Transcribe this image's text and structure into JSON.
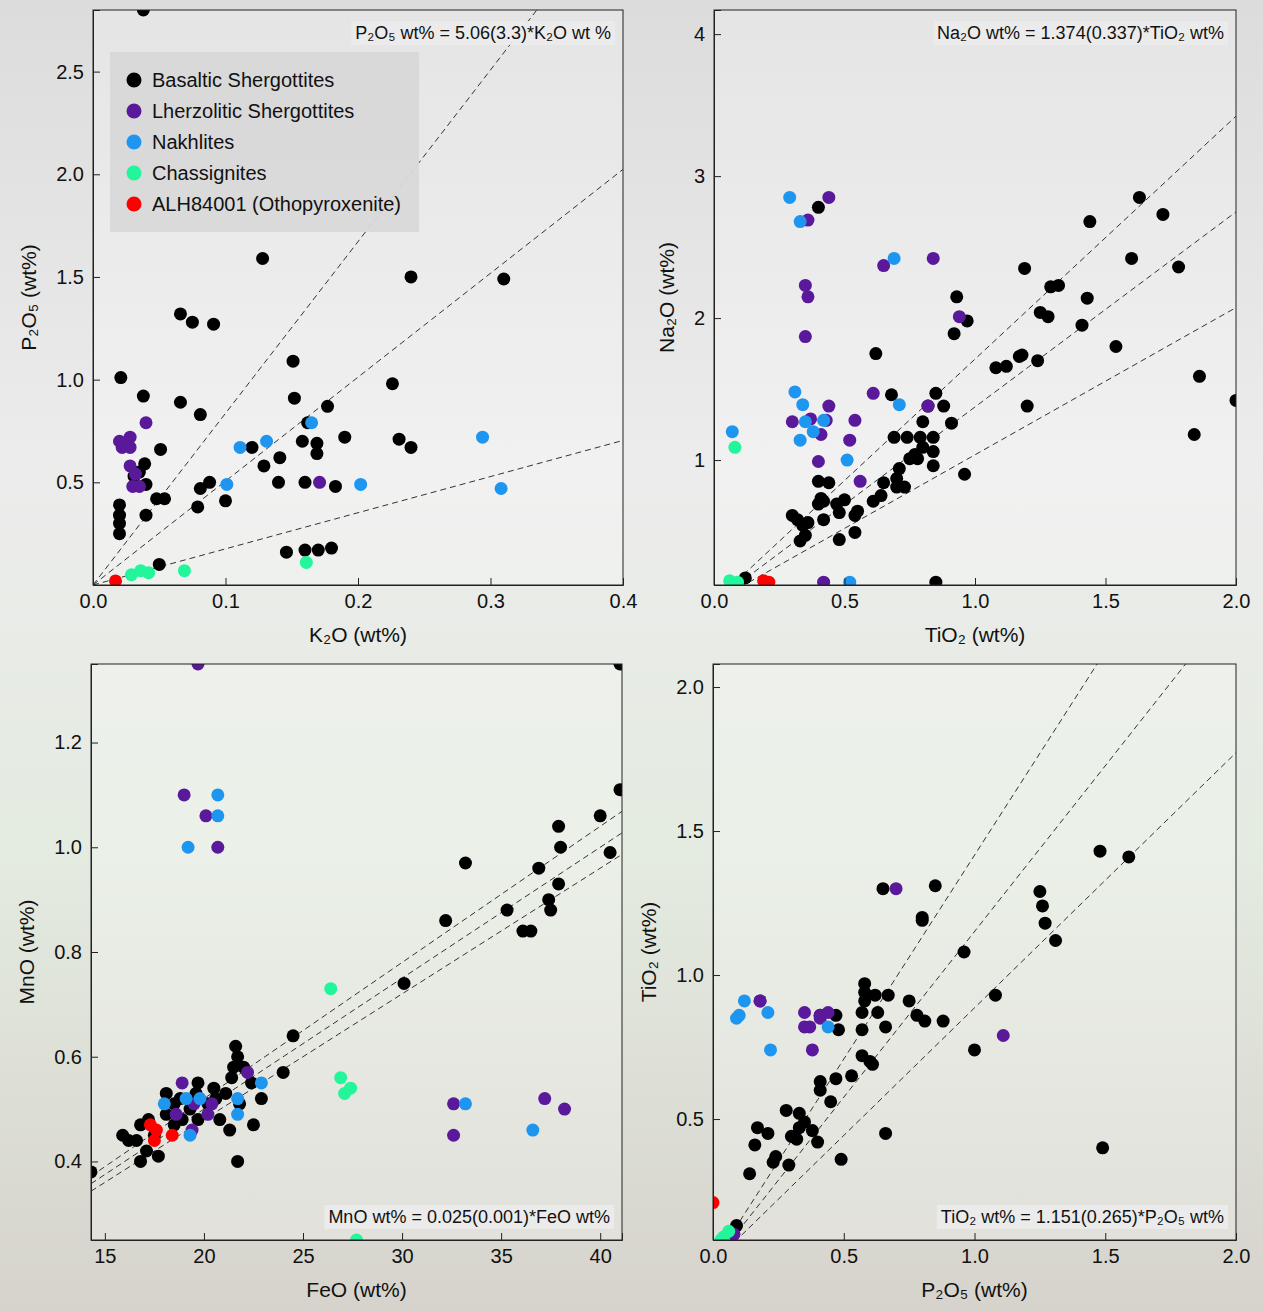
{
  "chart_data": [
    {
      "type": "scatter",
      "x_label": "K₂O (wt%)",
      "y_label": "P₂O₅ (wt%)",
      "annotation": "P₂O₅ wt% = 5.06(3.3)*K₂O wt %",
      "fit": {
        "slope": 5.06,
        "error": 3.3
      },
      "xlim": [
        0,
        0.4
      ],
      "ylim": [
        0,
        2.8
      ],
      "xticks": [
        {
          "value": 0,
          "label": "0.0"
        },
        0.1,
        0.2,
        0.3,
        0.4
      ],
      "yticks": [
        0.5,
        {
          "value": 1,
          "label": "1.0"
        },
        1.5,
        {
          "value": 2,
          "label": "2.0"
        },
        2.5
      ],
      "legend": "upper left",
      "series": [
        {
          "name": "Basaltic Shergottites",
          "color": "#000000",
          "x": [
            0.038,
            0.128,
            0.24,
            0.31,
            0.066,
            0.075,
            0.091,
            0.021,
            0.226,
            0.151,
            0.152,
            0.038,
            0.066,
            0.081,
            0.177,
            0.162,
            0.19,
            0.231,
            0.24,
            0.158,
            0.169,
            0.169,
            0.12,
            0.141,
            0.129,
            0.088,
            0.1,
            0.081,
            0.079,
            0.14,
            0.16,
            0.183,
            0.051,
            0.039,
            0.035,
            0.031,
            0.04,
            0.04,
            0.048,
            0.054,
            0.02,
            0.02,
            0.02,
            0.02,
            0.05,
            0.146,
            0.16,
            0.17,
            0.18
          ],
          "y": [
            2.8,
            1.59,
            1.5,
            1.49,
            1.32,
            1.28,
            1.27,
            1.01,
            0.98,
            1.09,
            0.91,
            0.92,
            0.89,
            0.83,
            0.87,
            0.79,
            0.72,
            0.71,
            0.67,
            0.7,
            0.69,
            0.64,
            0.67,
            0.62,
            0.58,
            0.5,
            0.41,
            0.47,
            0.38,
            0.5,
            0.5,
            0.48,
            0.66,
            0.59,
            0.55,
            0.53,
            0.49,
            0.34,
            0.42,
            0.42,
            0.39,
            0.34,
            0.3,
            0.25,
            0.1,
            0.16,
            0.17,
            0.17,
            0.18
          ]
        },
        {
          "name": "Lherzolitic Shergottites",
          "color": "#5a189a",
          "x": [
            0.02,
            0.028,
            0.022,
            0.028,
            0.04,
            0.028,
            0.032,
            0.03,
            0.035,
            0.171
          ],
          "y": [
            0.7,
            0.72,
            0.67,
            0.67,
            0.79,
            0.58,
            0.54,
            0.48,
            0.48,
            0.5
          ]
        },
        {
          "name": "Nakhlites",
          "color": "#1e96f0",
          "x": [
            0.131,
            0.111,
            0.101,
            0.165,
            0.202,
            0.294,
            0.308
          ],
          "y": [
            0.7,
            0.67,
            0.49,
            0.79,
            0.49,
            0.72,
            0.47
          ]
        },
        {
          "name": "Chassignites",
          "color": "#22f59a",
          "x": [
            0.029,
            0.036,
            0.042,
            0.069,
            0.161
          ],
          "y": [
            0.05,
            0.07,
            0.06,
            0.07,
            0.11
          ]
        },
        {
          "name": "ALH84001 (Othopyroxenite)",
          "color": "#ff0000",
          "x": [
            0.017
          ],
          "y": [
            0.02
          ]
        }
      ]
    },
    {
      "type": "scatter",
      "x_label": "TiO₂ (wt%)",
      "y_label": "Na₂O (wt%)",
      "annotation": "Na₂O wt% = 1.374(0.337)*TiO₂ wt%",
      "fit": {
        "slope": 1.374,
        "error": 0.337
      },
      "xlim": [
        0,
        2
      ],
      "ylim": [
        0.12,
        4.17
      ],
      "xticks": [
        {
          "value": 0,
          "label": "0.0"
        },
        0.5,
        {
          "value": 1,
          "label": "1.0"
        },
        1.5,
        {
          "value": 2,
          "label": "2.0"
        }
      ],
      "yticks": [
        1,
        2,
        3,
        4
      ],
      "series": [
        {
          "name": "Basaltic Shergottites",
          "color": "#000000",
          "x": [
            1.63,
            1.44,
            1.72,
            0.4,
            1.6,
            1.78,
            1.19,
            1.32,
            1.29,
            1.43,
            1.25,
            1.28,
            1.41,
            0.93,
            0.97,
            0.92,
            1.54,
            0.62,
            1.18,
            1.17,
            1.24,
            1.08,
            1.12,
            1.86,
            0.85,
            0.68,
            0.88,
            1.2,
            0.82,
            0.91,
            0.8,
            0.74,
            0.69,
            0.79,
            0.84,
            0.8,
            0.77,
            0.84,
            0.75,
            0.78,
            1.84,
            0.84,
            0.71,
            0.96,
            0.7,
            0.65,
            0.7,
            0.73,
            0.64,
            0.61,
            0.4,
            0.44,
            0.41,
            0.42,
            0.5,
            0.47,
            0.4,
            0.48,
            0.55,
            0.54,
            0.42,
            0.32,
            0.36,
            0.3,
            0.34,
            0.35,
            0.33,
            0.48,
            0.54,
            0.12,
            0.85,
            2.0
          ],
          "y": [
            2.85,
            2.68,
            2.73,
            2.78,
            2.42,
            2.36,
            2.35,
            2.23,
            2.22,
            2.14,
            2.04,
            2.01,
            1.95,
            2.15,
            1.98,
            1.89,
            1.8,
            1.75,
            1.74,
            1.73,
            1.7,
            1.65,
            1.66,
            1.59,
            1.47,
            1.46,
            1.38,
            1.38,
            1.38,
            1.26,
            1.27,
            1.16,
            1.16,
            1.16,
            1.16,
            1.09,
            1.04,
            1.06,
            1.01,
            1.01,
            1.18,
            0.96,
            0.94,
            0.9,
            0.87,
            0.84,
            0.81,
            0.81,
            0.75,
            0.71,
            0.85,
            0.84,
            0.73,
            0.71,
            0.72,
            0.69,
            0.69,
            0.63,
            0.64,
            0.61,
            0.58,
            0.58,
            0.56,
            0.61,
            0.54,
            0.47,
            0.43,
            0.44,
            0.49,
            0.17,
            0.14,
            1.42
          ]
        },
        {
          "name": "Lherzolitic Shergottites",
          "color": "#5a189a",
          "x": [
            0.44,
            0.36,
            0.35,
            0.36,
            0.35,
            0.84,
            0.65,
            0.94,
            0.61,
            0.82,
            0.3,
            0.37,
            0.44,
            0.43,
            0.54,
            0.41,
            0.52,
            0.4,
            0.56,
            0.42
          ],
          "y": [
            2.85,
            2.69,
            2.23,
            2.15,
            1.87,
            2.42,
            2.37,
            2.01,
            1.47,
            1.38,
            1.27,
            1.29,
            1.38,
            1.28,
            1.28,
            1.18,
            1.14,
            0.99,
            0.85,
            0.14
          ]
        },
        {
          "name": "Nakhlites",
          "color": "#1e96f0",
          "x": [
            0.29,
            0.33,
            0.69,
            0.07,
            0.31,
            0.34,
            0.35,
            0.33,
            0.42,
            0.38,
            0.51,
            0.71,
            0.52
          ],
          "y": [
            2.85,
            2.68,
            2.42,
            1.2,
            1.48,
            1.39,
            1.27,
            1.14,
            1.28,
            1.2,
            1.0,
            1.39,
            0.14
          ]
        },
        {
          "name": "Chassignites",
          "color": "#22f59a",
          "x": [
            0.08,
            0.06,
            0.09
          ],
          "y": [
            1.09,
            0.15,
            0.14
          ]
        },
        {
          "name": "ALH84001 (Othopyroxenite)",
          "color": "#ff0000",
          "x": [
            0.19,
            0.21
          ],
          "y": [
            0.15,
            0.14
          ]
        }
      ]
    },
    {
      "type": "scatter",
      "x_label": "FeO (wt%)",
      "y_label": "MnO (wt%)",
      "annotation": "MnO wt% = 0.025(0.001)*FeO wt%",
      "fit": {
        "slope": 0.025,
        "error": 0.001
      },
      "xlim": [
        14.3,
        41.1
      ],
      "ylim": [
        0.25,
        1.35
      ],
      "xticks": [
        15,
        20,
        25,
        30,
        35,
        40
      ],
      "yticks": [
        0.4,
        0.6,
        0.8,
        {
          "value": 1,
          "label": "1.0"
        },
        1.2
      ],
      "series": [
        {
          "name": "Basaltic Shergottites",
          "color": "#000000",
          "x": [
            14.3,
            15.9,
            16.2,
            16.6,
            16.8,
            17.1,
            17.5,
            17.7,
            16.8,
            17.2,
            18.1,
            18.1,
            18.5,
            18.8,
            18.5,
            19.3,
            19.6,
            19.7,
            18.9,
            19.7,
            20.2,
            20.6,
            20.8,
            20.5,
            21.1,
            21.4,
            21.5,
            21.7,
            21.6,
            22.0,
            21.8,
            21.3,
            21.7,
            22.5,
            22.4,
            22.9,
            24.0,
            24.5,
            30.1,
            32.2,
            33.2,
            35.3,
            36.1,
            36.5,
            36.9,
            37.4,
            37.5,
            37.9,
            37.9,
            38.0,
            40.0,
            40.5,
            41.0,
            41.0
          ],
          "y": [
            0.38,
            0.45,
            0.44,
            0.44,
            0.4,
            0.42,
            0.45,
            0.41,
            0.47,
            0.48,
            0.53,
            0.49,
            0.51,
            0.52,
            0.47,
            0.5,
            0.53,
            0.55,
            0.48,
            0.48,
            0.51,
            0.52,
            0.48,
            0.54,
            0.53,
            0.56,
            0.58,
            0.6,
            0.62,
            0.58,
            0.51,
            0.46,
            0.4,
            0.47,
            0.55,
            0.52,
            0.57,
            0.64,
            0.74,
            0.86,
            0.97,
            0.88,
            0.84,
            0.84,
            0.96,
            0.9,
            0.88,
            1.04,
            0.93,
            1.0,
            1.06,
            0.99,
            1.11,
            1.35
          ]
        },
        {
          "name": "Lherzolitic Shergottites",
          "color": "#5a189a",
          "x": [
            19.7,
            19.0,
            20.1,
            20.7,
            18.9,
            19.5,
            20.2,
            20.4,
            18.6,
            22.2,
            32.6,
            32.6,
            37.2,
            38.2,
            19.4
          ],
          "y": [
            1.35,
            1.1,
            1.06,
            1.0,
            0.55,
            0.51,
            0.49,
            0.51,
            0.49,
            0.57,
            0.51,
            0.45,
            0.52,
            0.5,
            0.46
          ]
        },
        {
          "name": "Nakhlites",
          "color": "#1e96f0",
          "x": [
            19.2,
            20.7,
            20.7,
            18.0,
            19.1,
            19.8,
            19.3,
            21.7,
            22.9,
            21.7,
            33.2,
            36.6
          ],
          "y": [
            1.0,
            1.1,
            1.06,
            0.51,
            0.52,
            0.52,
            0.45,
            0.49,
            0.55,
            0.52,
            0.51,
            0.46
          ]
        },
        {
          "name": "Chassignites",
          "color": "#22f59a",
          "x": [
            26.4,
            26.9,
            27.1,
            27.4,
            27.7
          ],
          "y": [
            0.73,
            0.56,
            0.53,
            0.54,
            0.25
          ]
        },
        {
          "name": "ALH84001 (Othopyroxenite)",
          "color": "#ff0000",
          "x": [
            17.3,
            17.5,
            17.6,
            18.4
          ],
          "y": [
            0.47,
            0.44,
            0.46,
            0.45
          ]
        }
      ]
    },
    {
      "type": "scatter",
      "x_label": "P₂O₅ (wt%)",
      "y_label": "TiO₂ (wt%)",
      "annotation": "TiO₂ wt% = 1.151(0.265)*P₂O₅ wt%",
      "fit": {
        "slope": 1.151,
        "error": 0.265
      },
      "xlim": [
        0,
        2
      ],
      "ylim": [
        0.08,
        2.08
      ],
      "xticks": [
        {
          "value": 0,
          "label": "0.0"
        },
        0.5,
        {
          "value": 1,
          "label": "1.0"
        },
        1.5,
        {
          "value": 2,
          "label": "2.0"
        }
      ],
      "yticks": [
        0.5,
        {
          "value": 1,
          "label": "1.0"
        },
        1.5,
        {
          "value": 2,
          "label": "2.0"
        }
      ],
      "series": [
        {
          "name": "Basaltic Shergottites",
          "color": "#000000",
          "x": [
            1.48,
            1.59,
            1.25,
            1.26,
            1.27,
            1.31,
            0.85,
            0.65,
            0.8,
            0.8,
            0.96,
            0.58,
            0.58,
            0.58,
            0.62,
            0.67,
            0.75,
            1.08,
            0.57,
            0.63,
            0.47,
            0.41,
            0.78,
            0.81,
            0.88,
            0.66,
            0.57,
            0.48,
            0.57,
            0.6,
            0.61,
            0.53,
            0.47,
            0.41,
            0.41,
            0.45,
            1.0,
            0.66,
            0.49,
            0.35,
            0.38,
            0.4,
            0.32,
            0.3,
            0.33,
            0.28,
            0.33,
            0.21,
            0.17,
            0.16,
            0.24,
            0.23,
            0.29,
            0.14,
            0.09,
            1.49
          ],
          "y": [
            1.43,
            1.41,
            1.29,
            1.24,
            1.18,
            1.12,
            1.31,
            1.3,
            1.2,
            1.19,
            1.08,
            0.97,
            0.94,
            0.91,
            0.93,
            0.93,
            0.91,
            0.93,
            0.87,
            0.87,
            0.86,
            0.86,
            0.86,
            0.84,
            0.84,
            0.82,
            0.81,
            0.81,
            0.72,
            0.7,
            0.69,
            0.65,
            0.64,
            0.63,
            0.6,
            0.56,
            0.74,
            0.45,
            0.36,
            0.49,
            0.46,
            0.42,
            0.43,
            0.44,
            0.47,
            0.53,
            0.52,
            0.45,
            0.47,
            0.41,
            0.37,
            0.35,
            0.34,
            0.31,
            0.13,
            0.4
          ]
        },
        {
          "name": "Lherzolitic Shergottites",
          "color": "#5a189a",
          "x": [
            0.7,
            0.18,
            0.35,
            0.37,
            0.35,
            0.41,
            0.44,
            0.38,
            0.41,
            1.11,
            0.08,
            0.18
          ],
          "y": [
            1.3,
            0.91,
            0.87,
            0.82,
            0.82,
            0.86,
            0.87,
            0.74,
            0.85,
            0.79,
            0.1,
            0.91
          ]
        },
        {
          "name": "Nakhlites",
          "color": "#1e96f0",
          "x": [
            0.1,
            0.12,
            0.21,
            0.22,
            0.44,
            0.09
          ],
          "y": [
            0.86,
            0.91,
            0.87,
            0.74,
            0.82,
            0.85
          ]
        },
        {
          "name": "Chassignites",
          "color": "#22f59a",
          "x": [
            0.04,
            0.06,
            0.03
          ],
          "y": [
            0.09,
            0.11,
            0.08
          ]
        },
        {
          "name": "ALH84001 (Othopyroxenite)",
          "color": "#ff0000",
          "x": [
            0.0
          ],
          "y": [
            0.21
          ]
        }
      ]
    }
  ]
}
